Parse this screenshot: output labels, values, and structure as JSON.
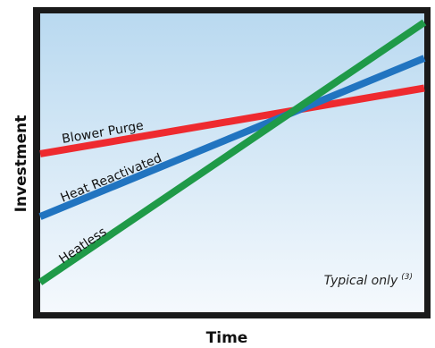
{
  "chart_data": {
    "type": "line",
    "title": "",
    "xlabel": "Time",
    "ylabel": "Investment",
    "xlim": [
      0,
      1
    ],
    "ylim": [
      0,
      1
    ],
    "grid": false,
    "legend": "none",
    "background_gradient": [
      "#b9d9f0",
      "#f5f9fd"
    ],
    "frame_color": "#1a1a1a",
    "x": [
      0,
      1
    ],
    "series": [
      {
        "name": "Blower Purge",
        "color": "#ee2a2f",
        "values": [
          0.53,
          0.75
        ]
      },
      {
        "name": "Heat Reactivated",
        "color": "#2174c0",
        "values": [
          0.32,
          0.85
        ]
      },
      {
        "name": "Heatless",
        "color": "#1f9a48",
        "values": [
          0.1,
          0.97
        ]
      }
    ],
    "annotation": {
      "text": "Typical only",
      "superscript": "(3)"
    }
  }
}
